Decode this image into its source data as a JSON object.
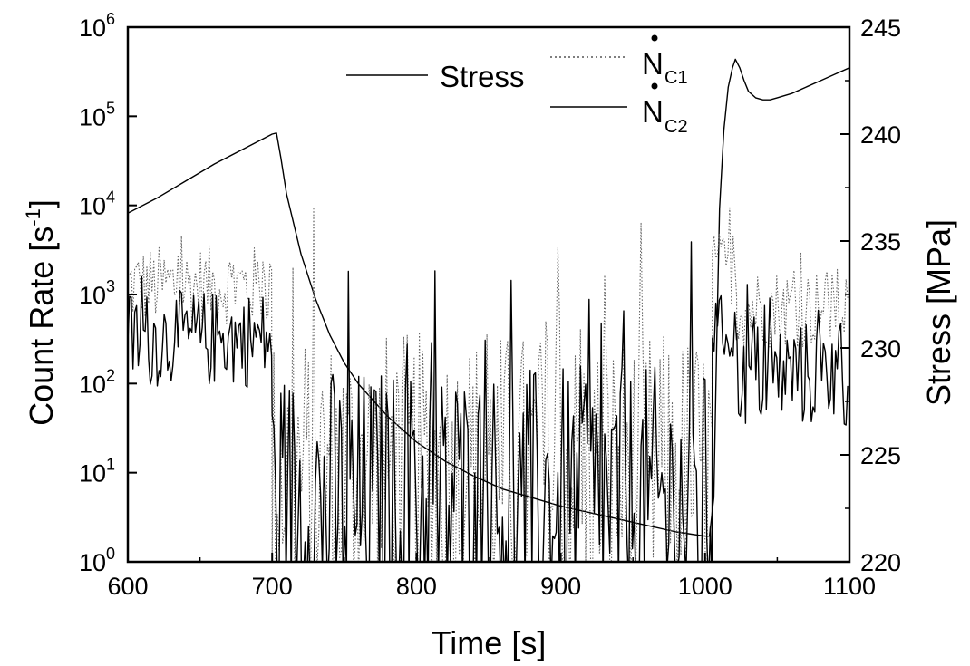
{
  "chart_data": {
    "type": "line",
    "title": "",
    "xlabel": "Time [s]",
    "ylabel_left": {
      "main": "Count Rate",
      "unit_open": " [s",
      "unit_exp": "-1",
      "unit_close": "]"
    },
    "ylabel_right": "Stress [MPa]",
    "xlim": [
      600,
      1100
    ],
    "ylim_left": [
      1,
      1000000
    ],
    "ylim_right": [
      220,
      245
    ],
    "left_scale": "log",
    "right_scale": "linear",
    "grid": false,
    "legend_position": "top-center",
    "x_ticks": [
      "600",
      "700",
      "800",
      "900",
      "1000",
      "1100"
    ],
    "x_tick_values": [
      600,
      700,
      800,
      900,
      1000,
      1100
    ],
    "left_ticks": [
      {
        "base": "10",
        "exp": "0",
        "value": 1
      },
      {
        "base": "10",
        "exp": "1",
        "value": 10
      },
      {
        "base": "10",
        "exp": "2",
        "value": 100
      },
      {
        "base": "10",
        "exp": "3",
        "value": 1000
      },
      {
        "base": "10",
        "exp": "4",
        "value": 10000
      },
      {
        "base": "10",
        "exp": "5",
        "value": 100000
      },
      {
        "base": "10",
        "exp": "6",
        "value": 1000000
      }
    ],
    "right_ticks": [
      "220",
      "225",
      "230",
      "235",
      "240",
      "245"
    ],
    "right_tick_values": [
      220,
      225,
      230,
      235,
      240,
      245
    ],
    "legend": [
      {
        "label": "Stress",
        "sub": "",
        "dot": false,
        "style": "solid"
      },
      {
        "label": "N",
        "sub": "C1",
        "dot": true,
        "style": "dotted"
      },
      {
        "label": "N",
        "sub": "C2",
        "dot": true,
        "style": "solid"
      }
    ],
    "series": [
      {
        "axis": "right",
        "style": "solid",
        "x": [
          600,
          620,
          640,
          660,
          680,
          700,
          703,
          706,
          710,
          720,
          730,
          740,
          750,
          760,
          780,
          800,
          820,
          840,
          860,
          880,
          900,
          920,
          940,
          960,
          980,
          1000,
          1003,
          1006,
          1008,
          1010,
          1013,
          1016,
          1019,
          1021,
          1024,
          1027,
          1030,
          1035,
          1040,
          1045,
          1050,
          1060,
          1070,
          1080,
          1090,
          1100
        ],
        "y": [
          236.3,
          237.0,
          237.8,
          238.6,
          239.3,
          240.0,
          240.05,
          238.9,
          237.2,
          234.4,
          232.3,
          230.6,
          229.3,
          228.3,
          226.8,
          225.6,
          224.7,
          224.0,
          223.4,
          223.0,
          222.6,
          222.3,
          222.0,
          221.7,
          221.4,
          221.2,
          221.2,
          223.0,
          230.0,
          236.5,
          240.2,
          242.2,
          243.1,
          243.5,
          243.1,
          242.5,
          242.0,
          241.7,
          241.6,
          241.6,
          241.7,
          241.9,
          242.2,
          242.5,
          242.8,
          243.1
        ]
      },
      {
        "axis": "left",
        "style": "dotted",
        "segments": [
          {
            "x": [
              600,
              700
            ],
            "log10_mean": 3.1,
            "log10_amplitude": 0.45
          },
          {
            "x": [
              700,
              1005
            ],
            "log10_mean": 1.0,
            "log10_amplitude": 1.6
          },
          {
            "x": [
              1005,
              1022
            ],
            "log10_mean": 3.3,
            "log10_amplitude": 0.4
          },
          {
            "x": [
              1022,
              1100
            ],
            "log10_mean": 2.85,
            "log10_amplitude": 0.45
          }
        ]
      },
      {
        "axis": "left",
        "style": "solid",
        "segments": [
          {
            "x": [
              600,
              700
            ],
            "log10_mean": 2.5,
            "log10_amplitude": 0.55
          },
          {
            "x": [
              700,
              1005
            ],
            "log10_mean": 0.6,
            "log10_amplitude": 1.6
          },
          {
            "x": [
              1005,
              1022
            ],
            "log10_mean": 2.6,
            "log10_amplitude": 0.4
          },
          {
            "x": [
              1022,
              1100
            ],
            "log10_mean": 2.1,
            "log10_amplitude": 0.6
          }
        ]
      }
    ]
  }
}
